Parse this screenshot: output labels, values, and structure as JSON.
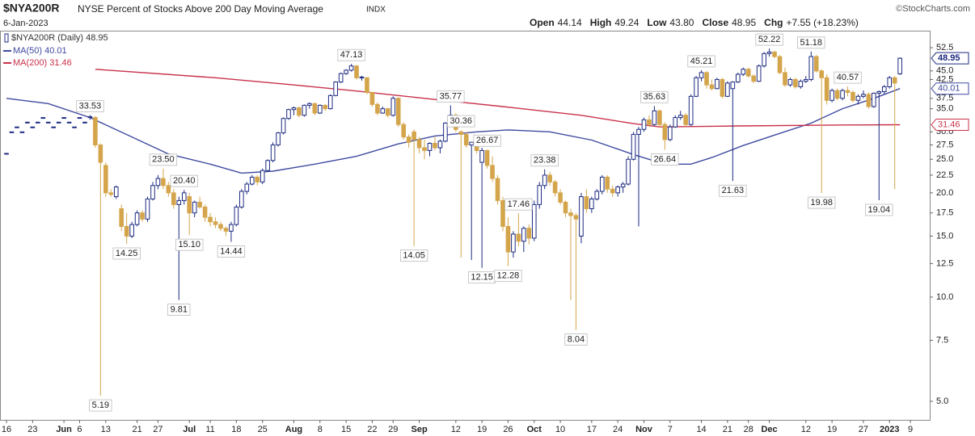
{
  "chart_data": {
    "type": "candlestick",
    "ticker": "$NYA200R",
    "title": "NYSE Percent of Stocks Above 200 Day Moving Average",
    "exchange": "INDX",
    "source": "©StockCharts.com",
    "date": "6-Jan-2023",
    "quote": [
      {
        "label": "Open",
        "value": "44.14"
      },
      {
        "label": "High",
        "value": "49.24"
      },
      {
        "label": "Low",
        "value": "43.80"
      },
      {
        "label": "Close",
        "value": "48.95"
      },
      {
        "label": "Chg",
        "value": "+7.55 (+18.23%)"
      }
    ],
    "legend_label": "$NYA200R (Daily) 48.95",
    "legend": "top-left",
    "colors": {
      "up": "#1c2a80",
      "down": "#d4a54b"
    },
    "ohlc": [
      [
        26,
        26,
        26,
        26
      ],
      [
        30,
        30,
        30,
        30
      ],
      [
        31,
        31,
        31,
        31
      ],
      [
        30,
        30,
        30,
        30
      ],
      [
        32,
        32,
        32,
        32
      ],
      [
        31,
        31,
        31,
        31
      ],
      [
        32,
        32,
        32,
        32
      ],
      [
        33,
        33,
        33,
        33
      ],
      [
        32,
        32,
        32,
        32
      ],
      [
        31,
        31,
        31,
        31
      ],
      [
        32,
        32,
        32,
        32
      ],
      [
        33,
        33,
        33,
        33
      ],
      [
        32,
        32,
        32,
        32
      ],
      [
        31,
        31,
        31,
        31
      ],
      [
        33,
        33,
        33,
        33
      ],
      [
        32,
        32,
        32,
        32
      ],
      [
        33,
        33.53,
        32.5,
        33.2
      ],
      [
        33,
        33.3,
        27,
        27.5
      ],
      [
        27.5,
        27.8,
        5.19,
        24.5
      ],
      [
        24,
        24.5,
        19.5,
        20
      ],
      [
        20,
        20.5,
        19.5,
        19.8
      ],
      [
        19.5,
        21,
        19.2,
        20.8
      ],
      [
        18,
        18.5,
        15.5,
        16
      ],
      [
        16,
        17.5,
        14.25,
        15
      ],
      [
        15,
        16.5,
        14.8,
        16.2
      ],
      [
        16.2,
        17.8,
        16,
        17.5
      ],
      [
        17.5,
        17.8,
        16.5,
        16.8
      ],
      [
        16.8,
        19.5,
        16.5,
        19.2
      ],
      [
        19.2,
        21.5,
        19,
        21
      ],
      [
        21,
        22.5,
        20.5,
        22
      ],
      [
        22,
        23.5,
        20.5,
        21
      ],
      [
        21,
        21.5,
        19.5,
        20
      ],
      [
        20,
        20.5,
        18,
        18.5
      ],
      [
        18.5,
        19.5,
        9.81,
        19
      ],
      [
        19,
        20.4,
        18.5,
        20
      ],
      [
        19.5,
        20,
        15.1,
        17.5
      ],
      [
        17.5,
        19,
        17,
        18.8
      ],
      [
        18.8,
        19.5,
        18,
        18.2
      ],
      [
        18.2,
        18.5,
        16.5,
        17
      ],
      [
        17,
        17.5,
        16,
        16.5
      ],
      [
        16.5,
        17,
        15.8,
        16.2
      ],
      [
        16.2,
        16.5,
        15.5,
        15.8
      ],
      [
        15.8,
        16,
        15,
        15.5
      ],
      [
        15.5,
        16.5,
        14.44,
        16.2
      ],
      [
        16.2,
        18.5,
        16,
        18.2
      ],
      [
        18.2,
        20.5,
        18,
        20.2
      ],
      [
        20.2,
        21.5,
        19.8,
        21.2
      ],
      [
        21.2,
        22.5,
        21,
        22.2
      ],
      [
        22.2,
        22.5,
        21,
        21.5
      ],
      [
        21.5,
        23.5,
        21.2,
        23.2
      ],
      [
        23.2,
        25,
        23,
        24.8
      ],
      [
        24.8,
        28,
        24.5,
        27.5
      ],
      [
        27.5,
        30,
        27.2,
        29.8
      ],
      [
        29.8,
        33,
        29.5,
        32.8
      ],
      [
        32.8,
        35,
        32.5,
        34.8
      ],
      [
        34.8,
        35.5,
        33.5,
        35.2
      ],
      [
        35.2,
        35.5,
        33,
        33.5
      ],
      [
        33.5,
        36,
        33.2,
        35.8
      ],
      [
        35.8,
        36.5,
        35,
        36.2
      ],
      [
        36.2,
        36.5,
        33.5,
        34
      ],
      [
        34,
        36,
        33.8,
        35.8
      ],
      [
        35.8,
        36,
        34.5,
        35
      ],
      [
        35,
        38.5,
        34.8,
        38.2
      ],
      [
        38.2,
        42,
        38,
        41.8
      ],
      [
        41.8,
        44.5,
        41.5,
        44.2
      ],
      [
        44.2,
        45.5,
        43.8,
        45.2
      ],
      [
        45.2,
        47.13,
        44.8,
        46.5
      ],
      [
        46.5,
        46.8,
        42.5,
        43
      ],
      [
        43,
        43.5,
        42.2,
        43.2
      ],
      [
        43,
        43.2,
        38.5,
        39
      ],
      [
        39,
        39.2,
        35.5,
        36
      ],
      [
        36,
        36.5,
        33.5,
        34
      ],
      [
        34,
        35.5,
        33.8,
        35
      ],
      [
        35,
        35.2,
        33,
        33.5
      ],
      [
        33.5,
        38,
        33.2,
        37.5
      ],
      [
        37.5,
        37.8,
        31,
        31.5
      ],
      [
        31.5,
        32,
        28.5,
        29
      ],
      [
        29,
        29.5,
        27,
        28
      ],
      [
        30,
        30.5,
        14.05,
        28.5
      ],
      [
        28.5,
        29,
        26,
        27
      ],
      [
        27,
        28.5,
        25,
        26.5
      ],
      [
        26.5,
        28,
        25.5,
        27.8
      ],
      [
        27.8,
        29,
        26.5,
        27
      ],
      [
        27,
        28.5,
        26,
        28.2
      ],
      [
        28.2,
        32,
        28,
        31.8
      ],
      [
        31.8,
        35.77,
        31.5,
        33.5
      ],
      [
        33.5,
        34,
        30,
        30.5
      ],
      [
        30,
        30.36,
        13,
        29.5
      ],
      [
        29.5,
        30,
        27,
        27.5
      ],
      [
        27.5,
        28,
        12.8,
        28
      ],
      [
        28,
        28.5,
        26,
        26.5
      ],
      [
        24.5,
        27,
        12.15,
        26.5
      ],
      [
        26.5,
        26.67,
        23.5,
        24
      ],
      [
        24,
        25.5,
        21.5,
        22
      ],
      [
        22,
        22.5,
        18.5,
        19
      ],
      [
        19,
        19.5,
        15.5,
        16
      ],
      [
        16,
        17,
        12.28,
        13.5
      ],
      [
        13.5,
        15.5,
        13,
        15.2
      ],
      [
        15.2,
        17.46,
        14,
        14.5
      ],
      [
        14.5,
        16,
        13.5,
        15.8
      ],
      [
        15.8,
        16.2,
        14.2,
        14.8
      ],
      [
        14.8,
        19,
        14.5,
        18.5
      ],
      [
        18.5,
        21.5,
        18,
        21
      ],
      [
        21,
        23.38,
        20.5,
        22.5
      ],
      [
        22.5,
        23,
        21,
        21.5
      ],
      [
        21.5,
        21.8,
        19.5,
        20
      ],
      [
        20,
        20.5,
        18.5,
        18.8
      ],
      [
        18.8,
        19,
        17,
        17.5
      ],
      [
        17.5,
        18,
        9.8,
        17.2
      ],
      [
        17.2,
        17.5,
        8.04,
        16.8
      ],
      [
        15,
        20,
        14.3,
        19.5
      ],
      [
        19.5,
        20.5,
        17.5,
        18
      ],
      [
        18,
        19.5,
        17.5,
        19.2
      ],
      [
        19.2,
        20.5,
        19,
        20.2
      ],
      [
        20.2,
        22.5,
        19.8,
        22.2
      ],
      [
        22.2,
        22.5,
        20,
        20.5
      ],
      [
        20.5,
        21,
        19.5,
        20
      ],
      [
        20,
        21,
        19.5,
        20.8
      ],
      [
        20.8,
        21.5,
        20,
        21.2
      ],
      [
        21.2,
        25.5,
        21,
        25
      ],
      [
        25,
        30,
        24.8,
        29.5
      ],
      [
        29.5,
        31,
        16,
        30.5
      ],
      [
        30.5,
        33,
        30,
        32.5
      ],
      [
        32.5,
        33.5,
        31,
        31.5
      ],
      [
        31.5,
        35.63,
        31.2,
        34.5
      ],
      [
        34.5,
        34.8,
        31,
        31.5
      ],
      [
        31.5,
        32,
        26.64,
        28.5
      ],
      [
        28.5,
        31.5,
        28.2,
        31
      ],
      [
        31,
        33.5,
        30.8,
        33
      ],
      [
        33,
        34.5,
        32.5,
        33.5
      ],
      [
        33.5,
        34,
        31,
        31.5
      ],
      [
        31.5,
        38.5,
        31.2,
        38
      ],
      [
        38,
        43.5,
        37.8,
        43
      ],
      [
        43,
        45.21,
        42,
        44.5
      ],
      [
        44.5,
        45,
        40,
        41
      ],
      [
        41,
        42.5,
        39.5,
        40
      ],
      [
        40,
        43,
        39.8,
        42.5
      ],
      [
        42.5,
        43,
        37.5,
        38
      ],
      [
        38,
        42,
        37.8,
        41.5
      ],
      [
        40,
        42,
        21.63,
        41.8
      ],
      [
        41.8,
        44.5,
        41.5,
        44
      ],
      [
        44,
        46,
        43.5,
        45.5
      ],
      [
        45.5,
        46,
        43,
        43.5
      ],
      [
        43.5,
        44,
        41.5,
        42
      ],
      [
        42,
        47,
        41.8,
        46.5
      ],
      [
        46.5,
        51,
        46,
        50.5
      ],
      [
        50.5,
        52.22,
        49.5,
        51
      ],
      [
        51,
        51.5,
        49,
        49.5
      ],
      [
        49.5,
        50,
        44,
        44.5
      ],
      [
        44.5,
        46,
        40.5,
        41
      ],
      [
        41,
        43,
        40.5,
        42.5
      ],
      [
        42.5,
        43,
        40,
        40.5
      ],
      [
        40.5,
        42.5,
        40,
        42
      ],
      [
        42,
        43.5,
        41.5,
        42.5
      ],
      [
        42.5,
        51.18,
        42,
        49.5
      ],
      [
        49.5,
        50,
        44.5,
        45
      ],
      [
        45,
        45.5,
        19.98,
        43
      ],
      [
        43,
        44,
        36,
        37
      ],
      [
        37,
        40,
        36.5,
        39.5
      ],
      [
        39.5,
        40,
        37,
        37.5
      ],
      [
        37.5,
        40,
        37,
        39.5
      ],
      [
        39.5,
        40.57,
        38,
        39
      ],
      [
        39,
        39.5,
        36.5,
        37
      ],
      [
        37,
        38.5,
        36,
        38
      ],
      [
        38,
        39.5,
        37.5,
        38.5
      ],
      [
        38.5,
        39,
        35,
        35.5
      ],
      [
        35.5,
        39,
        35.2,
        38.8
      ],
      [
        38.8,
        39.5,
        19.04,
        39.2
      ],
      [
        39.2,
        41,
        38.5,
        40.5
      ],
      [
        40.5,
        43.5,
        40,
        43
      ],
      [
        43,
        43.5,
        20.5,
        41.5
      ],
      [
        44.14,
        49.24,
        43.8,
        48.95
      ]
    ],
    "series": [
      {
        "name": "MA(50) 40.01",
        "color": "#3f4aa0",
        "x": [
          0,
          8,
          16,
          24,
          31,
          39,
          45,
          51,
          59,
          67,
          75,
          82,
          90,
          96,
          104,
          112,
          120,
          126,
          131,
          135,
          141,
          148,
          154,
          160,
          166,
          171
        ],
        "values": [
          37.5,
          36.2,
          33,
          29,
          25.9,
          24.2,
          22.8,
          23.1,
          24.2,
          25.5,
          27.7,
          29.2,
          30,
          30.4,
          30,
          28.4,
          25.8,
          24.2,
          24.2,
          25.3,
          27.4,
          29.7,
          31.8,
          35,
          37.5,
          40.01
        ]
      },
      {
        "name": "MA(200) 31.46",
        "color": "#c8314a",
        "x": [
          17,
          40,
          55,
          66,
          80,
          95,
          110,
          120,
          125,
          140,
          160,
          171
        ],
        "values": [
          45.5,
          43,
          41,
          39.5,
          37.5,
          35.5,
          33.5,
          31.7,
          31,
          31.2,
          31.4,
          31.46
        ]
      }
    ],
    "annotations": [
      {
        "x": 16,
        "value": 33.53
      },
      {
        "x": 18,
        "value": 5.19
      },
      {
        "x": 23,
        "value": 14.25
      },
      {
        "x": 30,
        "value": 23.5,
        "label": "23.50"
      },
      {
        "x": 33,
        "value": 9.81
      },
      {
        "x": 34,
        "value": 20.4,
        "label": "20.40"
      },
      {
        "x": 35,
        "value": 15.1,
        "label": "15.10"
      },
      {
        "x": 43,
        "value": 14.44
      },
      {
        "x": 66,
        "value": 47.13
      },
      {
        "x": 78,
        "value": 14.05
      },
      {
        "x": 85,
        "value": 35.77
      },
      {
        "x": 87,
        "value": 30.36
      },
      {
        "x": 91,
        "value": 12.15
      },
      {
        "x": 92,
        "value": 26.67
      },
      {
        "x": 96,
        "value": 12.28
      },
      {
        "x": 98,
        "value": 17.46
      },
      {
        "x": 103,
        "value": 23.38
      },
      {
        "x": 109,
        "value": 8.04
      },
      {
        "x": 124,
        "value": 35.63
      },
      {
        "x": 126,
        "value": 26.64
      },
      {
        "x": 133,
        "value": 45.21
      },
      {
        "x": 139,
        "value": 21.63
      },
      {
        "x": 146,
        "value": 52.22
      },
      {
        "x": 154,
        "value": 51.18
      },
      {
        "x": 156,
        "value": 19.98
      },
      {
        "x": 161,
        "value": 40.57
      },
      {
        "x": 167,
        "value": 19.04
      }
    ],
    "xlim": [
      -1.24,
      176.7
    ],
    "xticks": [
      {
        "value": 0,
        "label": "16"
      },
      {
        "value": 5,
        "label": "23"
      },
      {
        "value": 11,
        "label": "Jun"
      },
      {
        "value": 14,
        "label": "6"
      },
      {
        "value": 19,
        "label": "13"
      },
      {
        "value": 25,
        "label": "21"
      },
      {
        "value": 29,
        "label": "27"
      },
      {
        "value": 35,
        "label": "Jul"
      },
      {
        "value": 39,
        "label": "11"
      },
      {
        "value": 44,
        "label": "18"
      },
      {
        "value": 49,
        "label": "25"
      },
      {
        "value": 55,
        "label": "Aug"
      },
      {
        "value": 60,
        "label": "8"
      },
      {
        "value": 65,
        "label": "15"
      },
      {
        "value": 70,
        "label": "22"
      },
      {
        "value": 74,
        "label": "29"
      },
      {
        "value": 79,
        "label": "Sep"
      },
      {
        "value": 86,
        "label": "12"
      },
      {
        "value": 91,
        "label": "19"
      },
      {
        "value": 96,
        "label": "26"
      },
      {
        "value": 101,
        "label": "Oct"
      },
      {
        "value": 106,
        "label": "10"
      },
      {
        "value": 112,
        "label": "17"
      },
      {
        "value": 117,
        "label": "24"
      },
      {
        "value": 122,
        "label": "Nov"
      },
      {
        "value": 127,
        "label": "7"
      },
      {
        "value": 133,
        "label": "14"
      },
      {
        "value": 138,
        "label": "21"
      },
      {
        "value": 142,
        "label": "28"
      },
      {
        "value": 146,
        "label": "Dec"
      },
      {
        "value": 153,
        "label": "12"
      },
      {
        "value": 158,
        "label": "19"
      },
      {
        "value": 164,
        "label": "27"
      },
      {
        "value": 169,
        "label": "2023"
      },
      {
        "value": 173,
        "label": "9"
      }
    ],
    "ylim": [
      4.42,
      58.8
    ],
    "log_y": true,
    "yticks": [
      {
        "value": 5,
        "label": "5.0"
      },
      {
        "value": 7.5,
        "label": "7.5"
      },
      {
        "value": 10,
        "label": "10.0"
      },
      {
        "value": 12.5,
        "label": "12.5"
      },
      {
        "value": 15,
        "label": "15.0"
      },
      {
        "value": 17.5,
        "label": "17.5"
      },
      {
        "value": 20,
        "label": "20.0"
      },
      {
        "value": 22.5,
        "label": "22.5"
      },
      {
        "value": 25,
        "label": "25.0"
      },
      {
        "value": 27.5,
        "label": "27.5"
      },
      {
        "value": 30,
        "label": "30.0"
      },
      {
        "value": 35,
        "label": "35.0"
      },
      {
        "value": 37.5,
        "label": "37.5"
      },
      {
        "value": 42.5,
        "label": "42.5"
      },
      {
        "value": 45,
        "label": "45.0"
      },
      {
        "value": 52.5,
        "label": "52.5"
      }
    ]
  }
}
